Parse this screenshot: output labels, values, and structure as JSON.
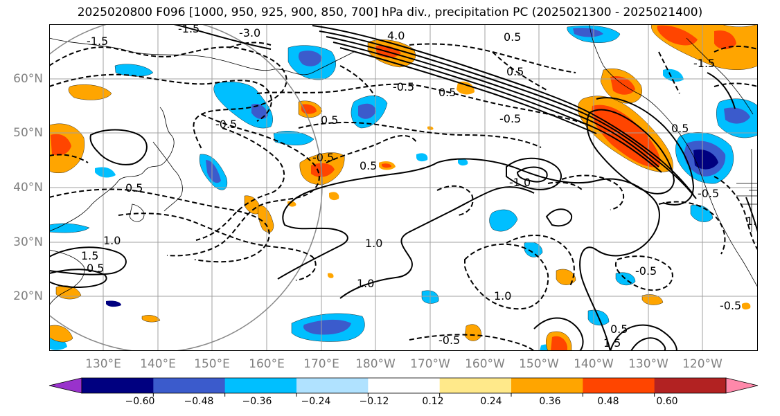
{
  "title": "2025020800 F096 [1000, 950, 925, 900, 850, 700] hPa div., precipitation PC (2025021300 - 2025021400)",
  "lat_labels": [
    "60°N",
    "50°N",
    "40°N",
    "30°N",
    "20°N"
  ],
  "lon_labels": [
    "130°E",
    "140°E",
    "150°E",
    "160°E",
    "170°E",
    "180°W",
    "170°W",
    "160°W",
    "150°W",
    "140°W",
    "130°W",
    "120°W"
  ],
  "contour_labels": [
    "-3.0",
    "-1.5",
    "-1.5",
    "4.0",
    "0.5",
    "0.5",
    "-0.5",
    "0.5",
    "-0.5",
    "1.0",
    "0.5",
    "1.0",
    "-0.5",
    "-0.5",
    "0.5",
    "1.0",
    "1.5",
    "0.5",
    "1.0",
    "-1.0",
    "-0.5",
    "0.5",
    "-0.5",
    "0.5",
    "1.5",
    "-1.5",
    "0.5",
    "1.0",
    "-0.5",
    "-0.5"
  ],
  "colorbar": {
    "ticks": [
      "−0.60",
      "−0.48",
      "−0.36",
      "−0.24",
      "−0.12",
      "0.12",
      "0.24",
      "0.36",
      "0.48",
      "0.60"
    ],
    "colors": [
      "#9932cc",
      "#000080",
      "#3b5bcc",
      "#00bfff",
      "#b0e2ff",
      "#ffffff",
      "#ffe98a",
      "#ffa500",
      "#ff4500",
      "#b22222",
      "#ff88aa"
    ]
  }
}
